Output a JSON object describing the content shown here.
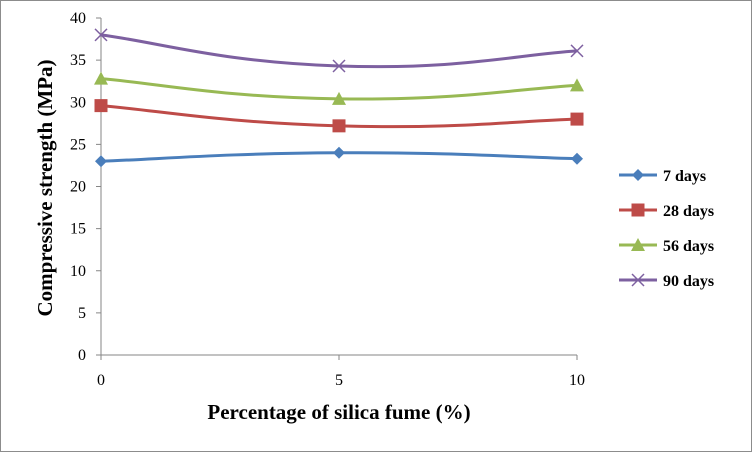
{
  "chart_data": {
    "type": "line",
    "title": "",
    "xlabel": "Percentage of silica fume (%)",
    "ylabel": "Compressive strength (MPa)",
    "x": [
      0,
      5,
      10
    ],
    "x_ticks": [
      "0",
      "5",
      "10"
    ],
    "y_ticks": [
      "0",
      "5",
      "10",
      "15",
      "20",
      "25",
      "30",
      "35",
      "40"
    ],
    "ylim": [
      0,
      40
    ],
    "grid": false,
    "legend_position": "right",
    "series": [
      {
        "name": "7 days",
        "values": [
          23.0,
          24.0,
          23.3
        ],
        "color": "#4a7ebb",
        "marker": "diamond"
      },
      {
        "name": "28 days",
        "values": [
          29.6,
          27.2,
          28.0
        ],
        "color": "#be4b48",
        "marker": "square"
      },
      {
        "name": "56 days",
        "values": [
          32.8,
          30.4,
          32.0
        ],
        "color": "#98b954",
        "marker": "triangle"
      },
      {
        "name": "90 days",
        "values": [
          38.0,
          34.3,
          36.1
        ],
        "color": "#7d60a0",
        "marker": "x"
      }
    ]
  }
}
